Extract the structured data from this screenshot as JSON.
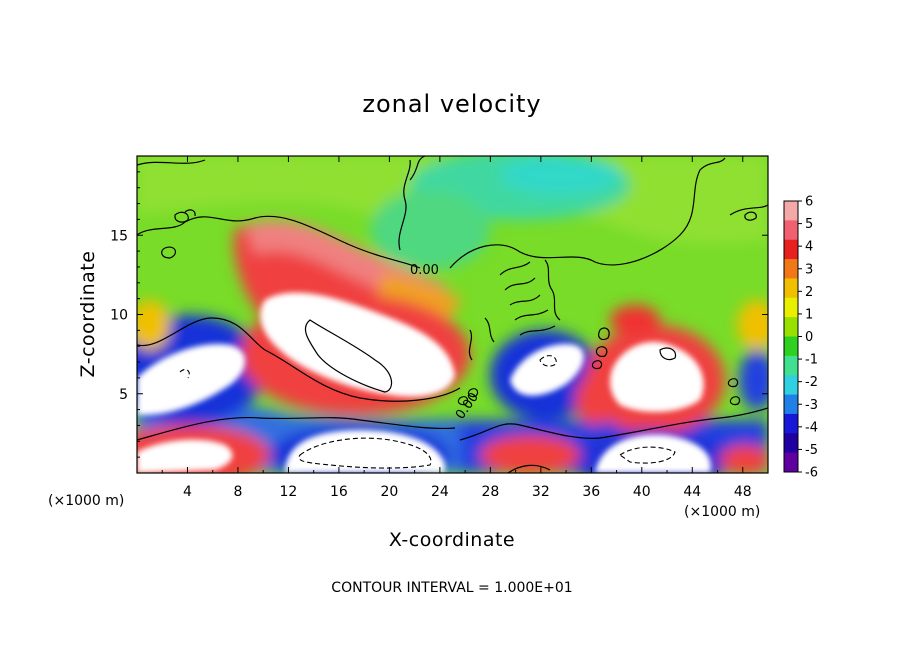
{
  "chart_data": {
    "type": "heatmap",
    "title": "zonal velocity",
    "xlabel": "X-coordinate",
    "ylabel": "Z-coordinate",
    "x_unit": "(×1000 m)",
    "y_unit": "(×1000 m)",
    "xlim": [
      0,
      50
    ],
    "ylim": [
      0,
      20
    ],
    "x_ticks": [
      "4",
      "8",
      "12",
      "16",
      "20",
      "24",
      "28",
      "32",
      "36",
      "40",
      "44",
      "48"
    ],
    "y_ticks": [
      "5",
      "10",
      "15"
    ],
    "colorbar": {
      "labels": [
        "6",
        "5",
        "4",
        "3",
        "2",
        "1",
        "0",
        "-1",
        "-2",
        "-3",
        "-4",
        "-5",
        "-6"
      ],
      "range": [
        -6,
        6
      ],
      "colors": [
        "#f4a8a8",
        "#f06070",
        "#e82020",
        "#f07818",
        "#f0c000",
        "#e8f000",
        "#98e000",
        "#30d020",
        "#40e090",
        "#30d0e0",
        "#2080e8",
        "#1818d8",
        "#2000a0",
        "#6000a0"
      ]
    },
    "contour_labels": [
      "0.00",
      "0.00"
    ],
    "contour_interval_text": "CONTOUR INTERVAL = 1.000E+01",
    "grid": false,
    "legend": "right"
  }
}
